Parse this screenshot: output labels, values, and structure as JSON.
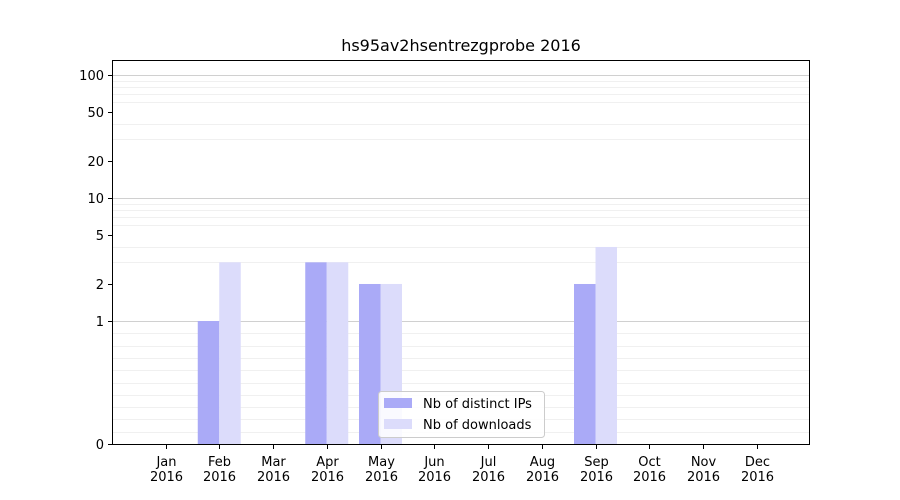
{
  "chart_data": {
    "type": "bar",
    "title": "hs95av2hsentrezgprobe 2016",
    "xlabel": "",
    "ylabel": "",
    "y_scale": "symlog",
    "ylim": [
      0,
      130
    ],
    "y_ticks": [
      0,
      1,
      2,
      5,
      10,
      20,
      50,
      100
    ],
    "grid": "horizontal",
    "legend_position": "bottom-center",
    "categories": [
      [
        "Jan",
        "2016"
      ],
      [
        "Feb",
        "2016"
      ],
      [
        "Mar",
        "2016"
      ],
      [
        "Apr",
        "2016"
      ],
      [
        "May",
        "2016"
      ],
      [
        "Jun",
        "2016"
      ],
      [
        "Jul",
        "2016"
      ],
      [
        "Aug",
        "2016"
      ],
      [
        "Sep",
        "2016"
      ],
      [
        "Oct",
        "2016"
      ],
      [
        "Nov",
        "2016"
      ],
      [
        "Dec",
        "2016"
      ]
    ],
    "series": [
      {
        "name": "Nb of distinct IPs",
        "color": "#aaaaf7",
        "values": [
          0,
          1,
          0,
          3,
          2,
          0,
          0,
          0,
          2,
          0,
          0,
          0
        ]
      },
      {
        "name": "Nb of downloads",
        "color": "#dcdcfb",
        "values": [
          0,
          3,
          0,
          3,
          2,
          0,
          0,
          0,
          4,
          0,
          0,
          0
        ]
      }
    ]
  }
}
